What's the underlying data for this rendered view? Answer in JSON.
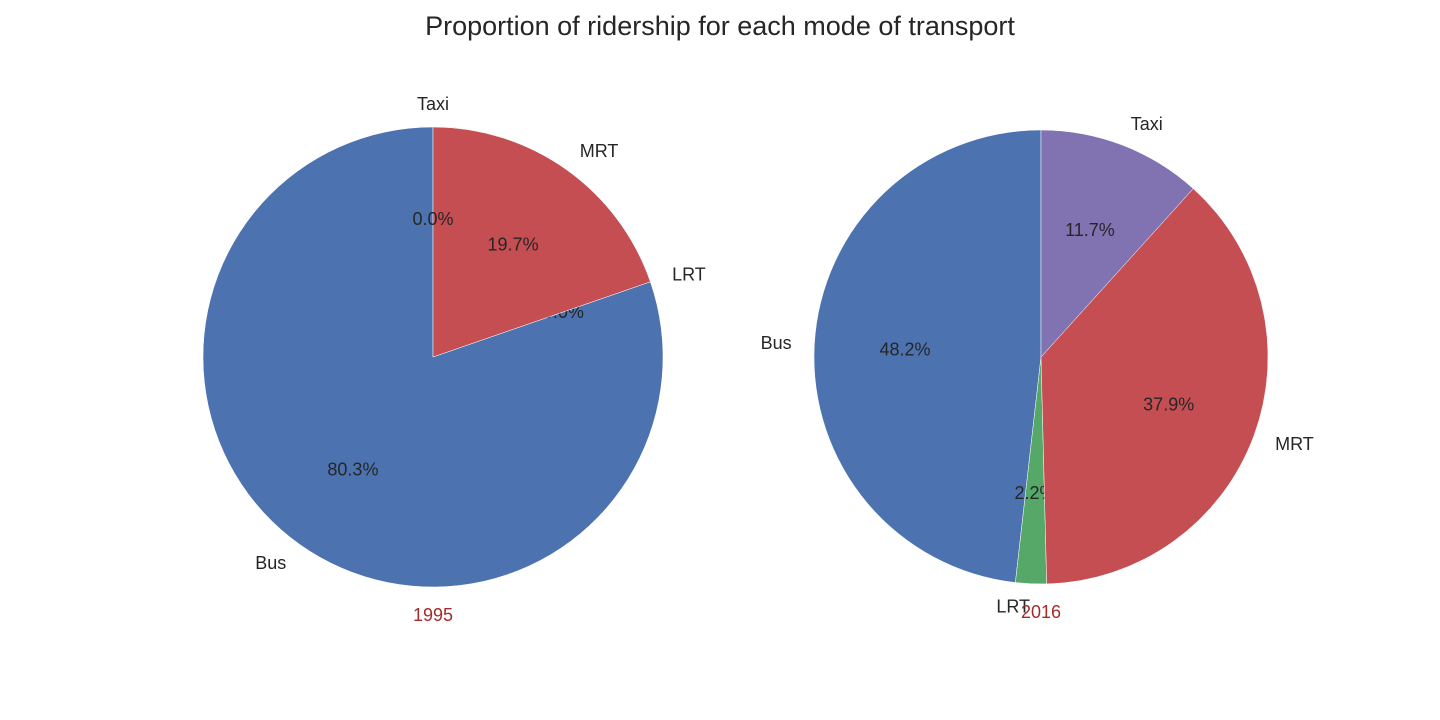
{
  "title": "Proportion of ridership for each mode of transport",
  "chart_data": [
    {
      "type": "pie",
      "xlabel": "1995",
      "categories": [
        "Bus",
        "LRT",
        "MRT",
        "Taxi"
      ],
      "values": [
        80.3,
        0.0,
        19.7,
        0.0
      ],
      "pct_labels": [
        "80.3%",
        "0.0%",
        "19.7%",
        "0.0%"
      ],
      "colors": [
        "#4c72b0",
        "#55a868",
        "#c44e52",
        "#8172b2"
      ],
      "start_angle_deg": 90,
      "direction": "counterclockwise"
    },
    {
      "type": "pie",
      "xlabel": "2016",
      "categories": [
        "Bus",
        "LRT",
        "MRT",
        "Taxi"
      ],
      "values": [
        48.2,
        2.2,
        37.9,
        11.7
      ],
      "pct_labels": [
        "48.2%",
        "2.2%",
        "37.9%",
        "11.7%"
      ],
      "colors": [
        "#4c72b0",
        "#55a868",
        "#c44e52",
        "#8172b2"
      ],
      "start_angle_deg": 90,
      "direction": "counterclockwise"
    }
  ],
  "year_label_color": "#a52a2a"
}
